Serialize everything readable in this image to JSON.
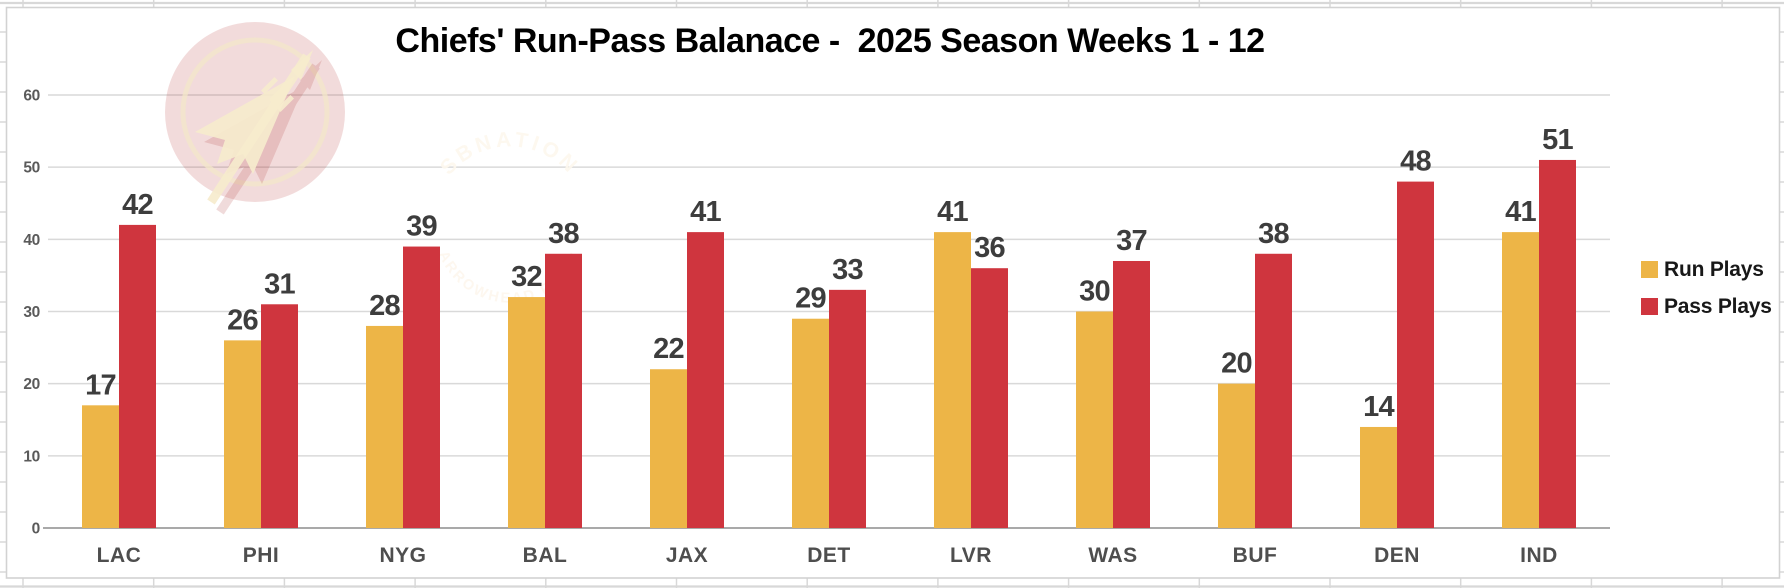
{
  "title": "Chiefs' Run-Pass Balanace -  2025 Season Weeks 1 - 12",
  "watermark": {
    "top_text": "SBNATION",
    "bottom_text": "ARROWHEAD PRIDE"
  },
  "legend": {
    "items": [
      {
        "label": "Run Plays",
        "color": "#EDB547"
      },
      {
        "label": "Pass Plays",
        "color": "#CF353E"
      }
    ]
  },
  "colors": {
    "run_bar": "#EDB547",
    "pass_bar": "#CF353E",
    "gridline": "#D9D9D9",
    "zero_axis": "#A9A9A9",
    "frame_border": "#D2D2D2",
    "sheet_line": "#D8D8D8",
    "title_text": "#000000",
    "value_label": "#3D3D3D",
    "category_label": "#4E4E4E",
    "ytick_label": "#5A5A5A",
    "watermark_badge": "#C04A4A",
    "watermark_cream": "#F6EBCD"
  },
  "chart_data": {
    "type": "bar",
    "title": "Chiefs' Run-Pass Balanace -  2025 Season Weeks 1 - 12",
    "categories": [
      "LAC",
      "PHI",
      "NYG",
      "BAL",
      "JAX",
      "DET",
      "LVR",
      "WAS",
      "BUF",
      "DEN",
      "IND"
    ],
    "series": [
      {
        "name": "Run Plays",
        "color": "#EDB547",
        "values": [
          17,
          26,
          28,
          32,
          22,
          29,
          41,
          30,
          20,
          14,
          41
        ]
      },
      {
        "name": "Pass Plays",
        "color": "#CF353E",
        "values": [
          42,
          31,
          39,
          38,
          41,
          33,
          36,
          37,
          38,
          48,
          51
        ]
      }
    ],
    "xlabel": "",
    "ylabel": "",
    "ylim": [
      0,
      60
    ],
    "yticks": [
      0,
      10,
      20,
      30,
      40,
      50,
      60
    ],
    "grid": true,
    "data_labels": true,
    "legend_position": "right"
  }
}
